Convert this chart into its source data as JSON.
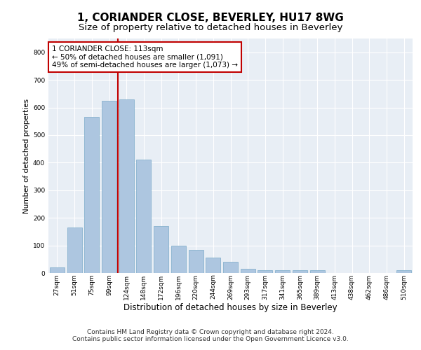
{
  "title": "1, CORIANDER CLOSE, BEVERLEY, HU17 8WG",
  "subtitle": "Size of property relative to detached houses in Beverley",
  "xlabel": "Distribution of detached houses by size in Beverley",
  "ylabel": "Number of detached properties",
  "categories": [
    "27sqm",
    "51sqm",
    "75sqm",
    "99sqm",
    "124sqm",
    "148sqm",
    "172sqm",
    "196sqm",
    "220sqm",
    "244sqm",
    "269sqm",
    "293sqm",
    "317sqm",
    "341sqm",
    "365sqm",
    "389sqm",
    "413sqm",
    "438sqm",
    "462sqm",
    "486sqm",
    "510sqm"
  ],
  "values": [
    20,
    165,
    565,
    625,
    630,
    410,
    170,
    100,
    85,
    55,
    40,
    15,
    10,
    10,
    10,
    10,
    0,
    0,
    0,
    0,
    10
  ],
  "bar_color": "#adc6e0",
  "bar_edge_color": "#7aaac8",
  "vline_color": "#c00000",
  "vline_pos": 3.5,
  "annotation_text": "1 CORIANDER CLOSE: 113sqm\n← 50% of detached houses are smaller (1,091)\n49% of semi-detached houses are larger (1,073) →",
  "annotation_box_color": "#ffffff",
  "annotation_box_edge": "#c00000",
  "ylim": [
    0,
    850
  ],
  "yticks": [
    0,
    100,
    200,
    300,
    400,
    500,
    600,
    700,
    800
  ],
  "bg_color": "#e8eef5",
  "footer_line1": "Contains HM Land Registry data © Crown copyright and database right 2024.",
  "footer_line2": "Contains public sector information licensed under the Open Government Licence v3.0.",
  "title_fontsize": 11,
  "subtitle_fontsize": 9.5,
  "xlabel_fontsize": 8.5,
  "ylabel_fontsize": 7.5,
  "tick_fontsize": 6.5,
  "annotation_fontsize": 7.5,
  "footer_fontsize": 6.5
}
